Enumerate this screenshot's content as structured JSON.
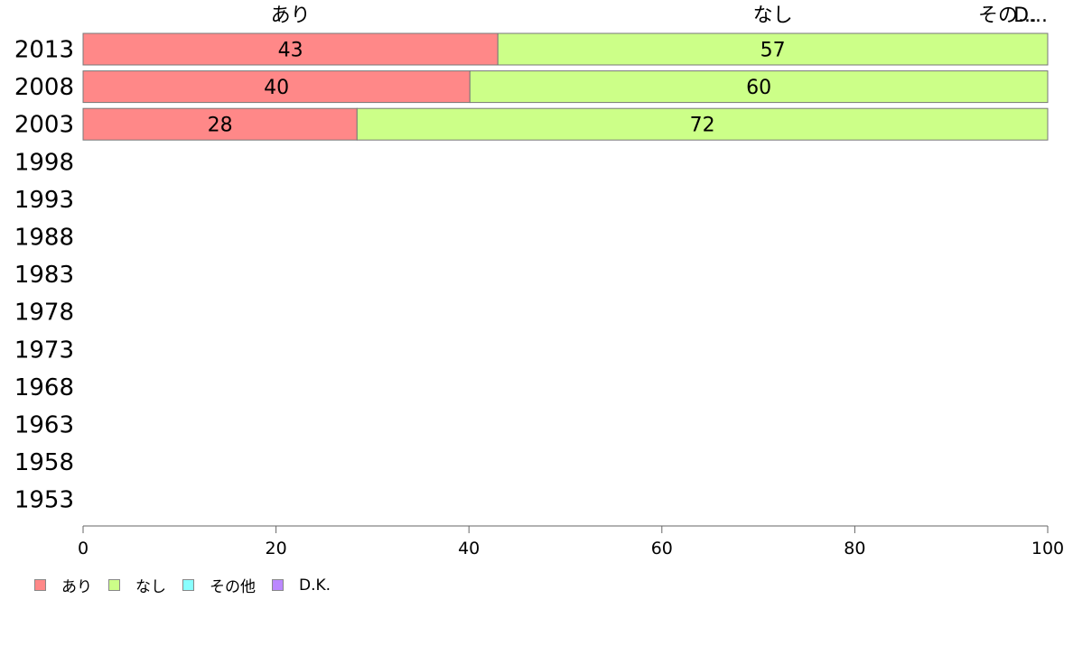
{
  "chart_data": {
    "type": "bar",
    "orientation": "horizontal",
    "stacked": true,
    "categories": [
      "2013",
      "2008",
      "2003",
      "1998",
      "1993",
      "1988",
      "1983",
      "1978",
      "1973",
      "1968",
      "1963",
      "1958",
      "1953"
    ],
    "series": [
      {
        "name": "あり",
        "color": "#ff8888",
        "values": [
          43.0,
          40.1,
          28.4,
          null,
          null,
          null,
          null,
          null,
          null,
          null,
          null,
          null,
          null
        ]
      },
      {
        "name": "なし",
        "color": "#ccff88",
        "values": [
          57.0,
          59.9,
          71.6,
          null,
          null,
          null,
          null,
          null,
          null,
          null,
          null,
          null,
          null
        ]
      },
      {
        "name": "その他",
        "color": "#88ffff",
        "values": [
          0,
          0,
          0,
          null,
          null,
          null,
          null,
          null,
          null,
          null,
          null,
          null,
          null
        ]
      },
      {
        "name": "D.K.",
        "color": "#bb88ff",
        "values": [
          0,
          0,
          0,
          null,
          null,
          null,
          null,
          null,
          null,
          null,
          null,
          null,
          null
        ]
      }
    ],
    "data_labels": [
      [
        "43",
        "57"
      ],
      [
        "40",
        "60"
      ],
      [
        "28",
        "72"
      ]
    ],
    "column_labels": [
      {
        "text": "あり",
        "at": 21.5
      },
      {
        "text": "なし",
        "at": 71.5
      },
      {
        "text": "その...",
        "at": 100
      },
      {
        "text": "D...",
        "at": 100
      }
    ],
    "xlim": [
      0,
      100
    ],
    "xticks": [
      0,
      20,
      40,
      60,
      80,
      100
    ],
    "grid": false,
    "legend_position": "bottom-left"
  }
}
